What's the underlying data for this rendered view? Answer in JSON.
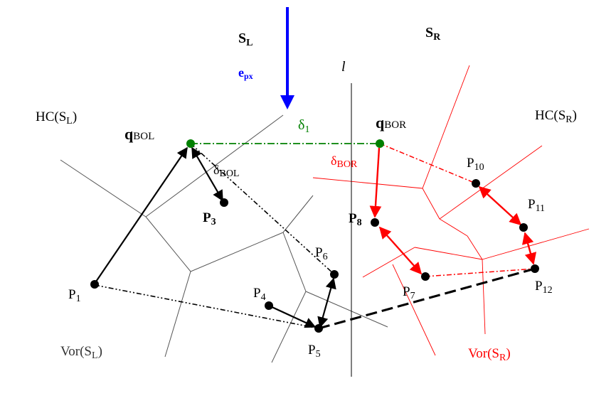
{
  "colors": {
    "black": "#000000",
    "red": "#ff0000",
    "green": "#008000",
    "blue": "#0000ff",
    "gray": "#555555"
  },
  "labels": {
    "sl": {
      "main": "S",
      "sub": "L"
    },
    "sr": {
      "main": "S",
      "sub": "R"
    },
    "epx": {
      "main": "e",
      "sub": "px"
    },
    "l": "l",
    "hc_sl": {
      "main": "HC(S",
      "sub": "L",
      "end": ")"
    },
    "hc_sr": {
      "main": "HC(S",
      "sub": "R",
      "end": ")"
    },
    "q_bol": {
      "main": "q",
      "sub": "BOL"
    },
    "q_bor": {
      "main": "q",
      "sub": "BOR"
    },
    "delta1": {
      "main": "δ",
      "sub": "1"
    },
    "delta_bol": {
      "main": "δ",
      "sub": "BOL"
    },
    "delta_bor": {
      "main": "δ",
      "sub": "BOR"
    },
    "p1": {
      "main": "P",
      "sub": "1"
    },
    "p3": {
      "main": "P",
      "sub": "3"
    },
    "p4": {
      "main": "P",
      "sub": "4"
    },
    "p5": {
      "main": "P",
      "sub": "5"
    },
    "p6": {
      "main": "P",
      "sub": "6"
    },
    "p7": {
      "main": "P",
      "sub": "7"
    },
    "p8": {
      "main": "P",
      "sub": "8"
    },
    "p10": {
      "main": "P",
      "sub": "10"
    },
    "p11": {
      "main": "P",
      "sub": "11"
    },
    "p12": {
      "main": "P",
      "sub": "12"
    },
    "vor_sl": {
      "main": "Vor(S",
      "sub": "L",
      "end": ")"
    },
    "vor_sr": {
      "main": "Vor(S",
      "sub": "R",
      "end": ")"
    }
  }
}
